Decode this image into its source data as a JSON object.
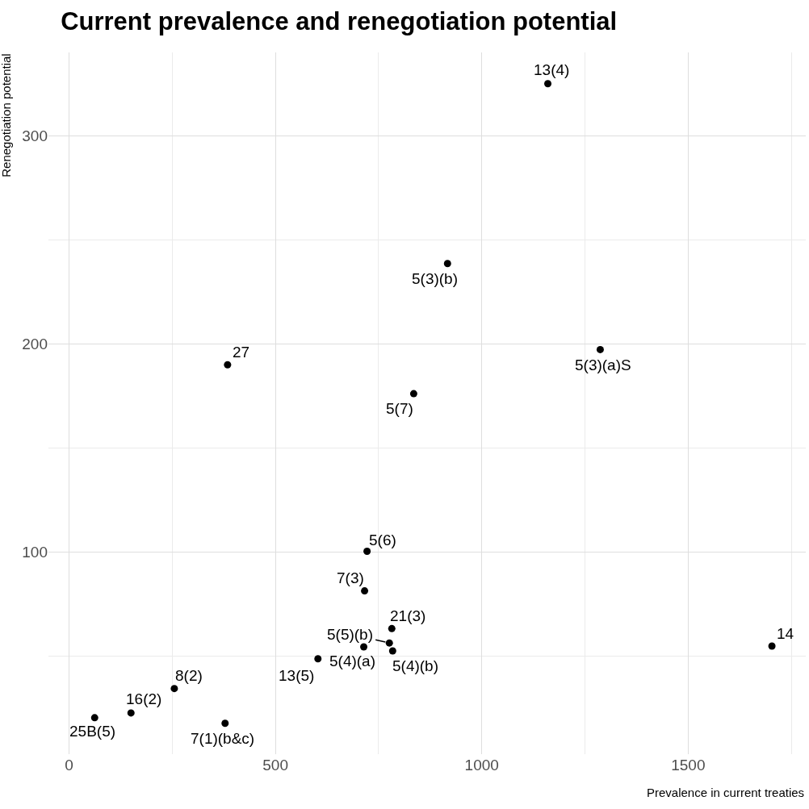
{
  "chart_data": {
    "type": "scatter",
    "title": "Current prevalence and renegotiation potential",
    "xlabel": "Prevalence in current treaties",
    "ylabel": "Renegotiation potential",
    "x": [
      1160,
      917,
      1287,
      384,
      835,
      722,
      716,
      782,
      776,
      714,
      784,
      603,
      1703,
      255,
      150,
      62,
      378
    ],
    "series": [
      {
        "color": "#000000",
        "values": [
          325,
          238.6,
          197.3,
          190,
          176.1,
          100.4,
          81.4,
          63.3,
          56.4,
          54.5,
          52.6,
          48.8,
          54.9,
          34.5,
          22.8,
          20.5,
          17.8
        ]
      }
    ],
    "annotations": [
      {
        "text": "13(4)",
        "x": 1160,
        "y": 325
      },
      {
        "text": "5(3)(b)",
        "x": 917,
        "y": 238.6
      },
      {
        "text": "5(3)(a)S",
        "x": 1287,
        "y": 197.3
      },
      {
        "text": "27",
        "x": 384,
        "y": 190
      },
      {
        "text": "5(7)",
        "x": 835,
        "y": 176.1
      },
      {
        "text": "5(6)",
        "x": 722,
        "y": 100.4
      },
      {
        "text": "7(3)",
        "x": 716,
        "y": 81.4
      },
      {
        "text": "21(3)",
        "x": 782,
        "y": 63.3
      },
      {
        "text": "5(5)(b)",
        "x": 776,
        "y": 56.4
      },
      {
        "text": "5(4)(a)",
        "x": 714,
        "y": 54.5
      },
      {
        "text": "5(4)(b)",
        "x": 784,
        "y": 52.6
      },
      {
        "text": "13(5)",
        "x": 603,
        "y": 48.8
      },
      {
        "text": "14",
        "x": 1703,
        "y": 54.9
      },
      {
        "text": "8(2)",
        "x": 255,
        "y": 34.5
      },
      {
        "text": "16(2)",
        "x": 150,
        "y": 22.8
      },
      {
        "text": "25B(5)",
        "x": 62,
        "y": 20.5
      },
      {
        "text": "7(1)(b&c)",
        "x": 378,
        "y": 17.8
      }
    ],
    "xlim": [
      -50,
      1785
    ],
    "ylim": [
      3,
      340
    ],
    "xticks": [
      0,
      500,
      1000,
      1500
    ],
    "yticks": [
      100,
      200,
      300
    ],
    "grid": true,
    "marker": "circle"
  }
}
